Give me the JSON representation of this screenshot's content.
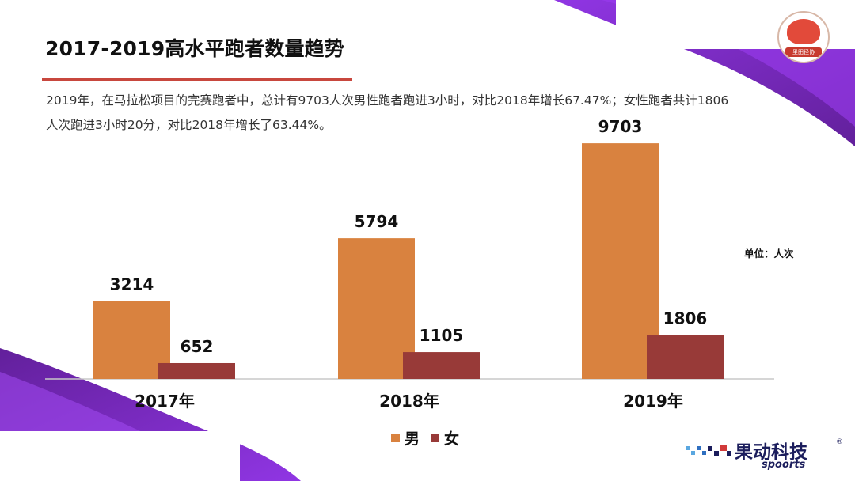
{
  "slide": {
    "title": "2017-2019高水平跑者数量趋势",
    "description": "2019年，在马拉松项目的完赛跑者中，总计有9703人次男性跑者跑进3小时，对比2018年增长67.47%；女性跑者共计1806人次跑进3小时20分，对比2018年增长了63.44%。",
    "unit_label": "单位：人次",
    "badge_text": "里田径协"
  },
  "brand": {
    "name": "果动科技",
    "registered": "®",
    "sub": "spoorts"
  },
  "colors": {
    "male": "#d9823f",
    "female": "#983a38",
    "accent_purple": "#6b1fae",
    "title_rule": "#c8473e"
  },
  "chart_data": {
    "type": "bar",
    "categories": [
      "2017年",
      "2018年",
      "2019年"
    ],
    "series": [
      {
        "name": "男",
        "values": [
          3214,
          5794,
          9703
        ]
      },
      {
        "name": "女",
        "values": [
          652,
          1105,
          1806
        ]
      }
    ],
    "title": "",
    "xlabel": "",
    "ylabel": "",
    "ylim": [
      0,
      10000
    ],
    "grid": false,
    "legend": "bottom-center",
    "data_labels": true
  }
}
